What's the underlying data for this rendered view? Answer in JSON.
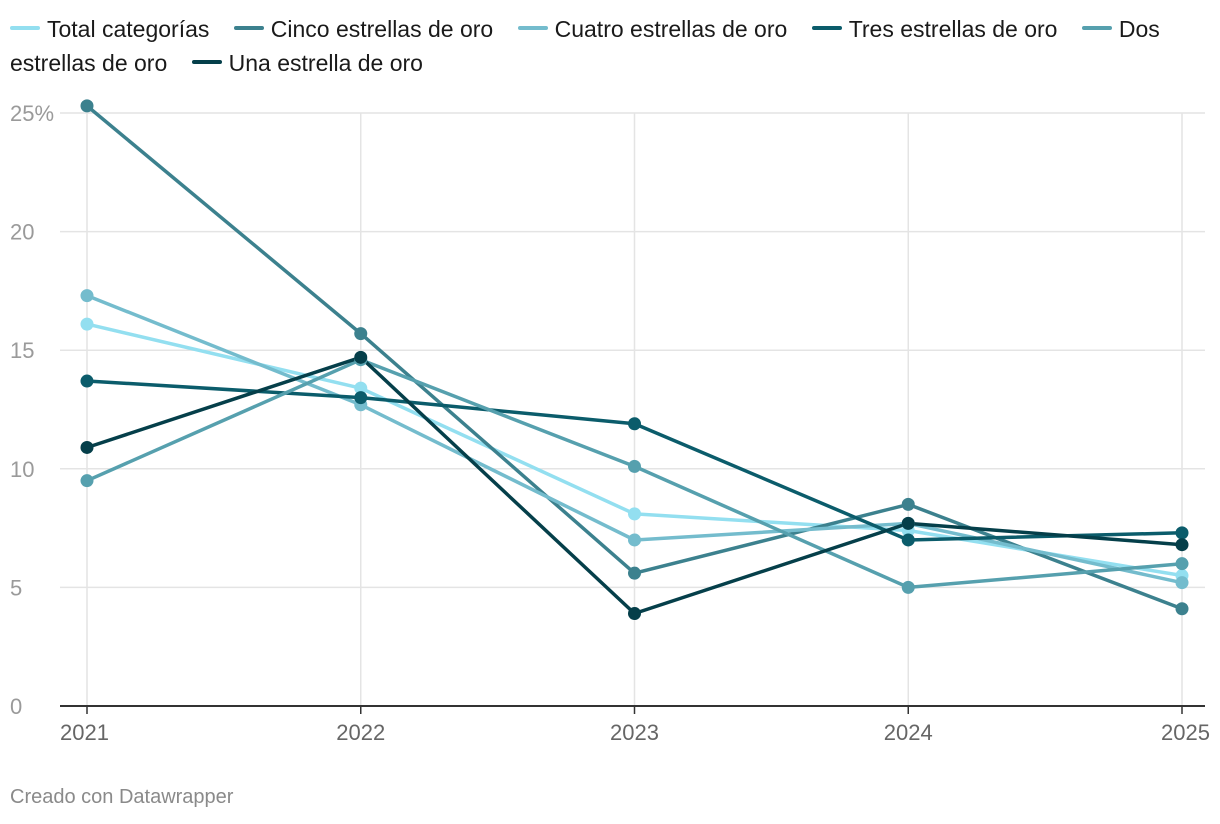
{
  "chart_data": {
    "type": "line",
    "x": [
      "2021",
      "2022",
      "2023",
      "2024",
      "2025"
    ],
    "y_ticks": [
      "0",
      "5",
      "10",
      "15",
      "20",
      "25%"
    ],
    "y_tick_values": [
      0,
      5,
      10,
      15,
      20,
      25
    ],
    "ylim": [
      0,
      25
    ],
    "grid": true,
    "legend_position": "top",
    "series": [
      {
        "name": "Total categorías",
        "color": "#93dff0",
        "values": [
          16.1,
          13.4,
          8.1,
          7.4,
          5.5
        ]
      },
      {
        "name": "Cinco estrellas de oro",
        "color": "#3c818e",
        "values": [
          25.3,
          15.7,
          5.6,
          8.5,
          4.1
        ]
      },
      {
        "name": "Cuatro estrellas de oro",
        "color": "#74bccd",
        "values": [
          17.3,
          12.7,
          7.0,
          7.7,
          5.2
        ]
      },
      {
        "name": "Tres estrellas de oro",
        "color": "#0b5c6b",
        "values": [
          13.7,
          13.0,
          11.9,
          7.0,
          7.3
        ]
      },
      {
        "name": "Dos estrellas de oro",
        "color": "#56a0ae",
        "values": [
          9.5,
          14.6,
          10.1,
          5.0,
          6.0
        ]
      },
      {
        "name": "Una estrella de oro",
        "color": "#053f4a",
        "values": [
          10.9,
          14.7,
          3.9,
          7.7,
          6.8
        ]
      }
    ]
  },
  "footer": {
    "credit": "Creado con Datawrapper"
  }
}
